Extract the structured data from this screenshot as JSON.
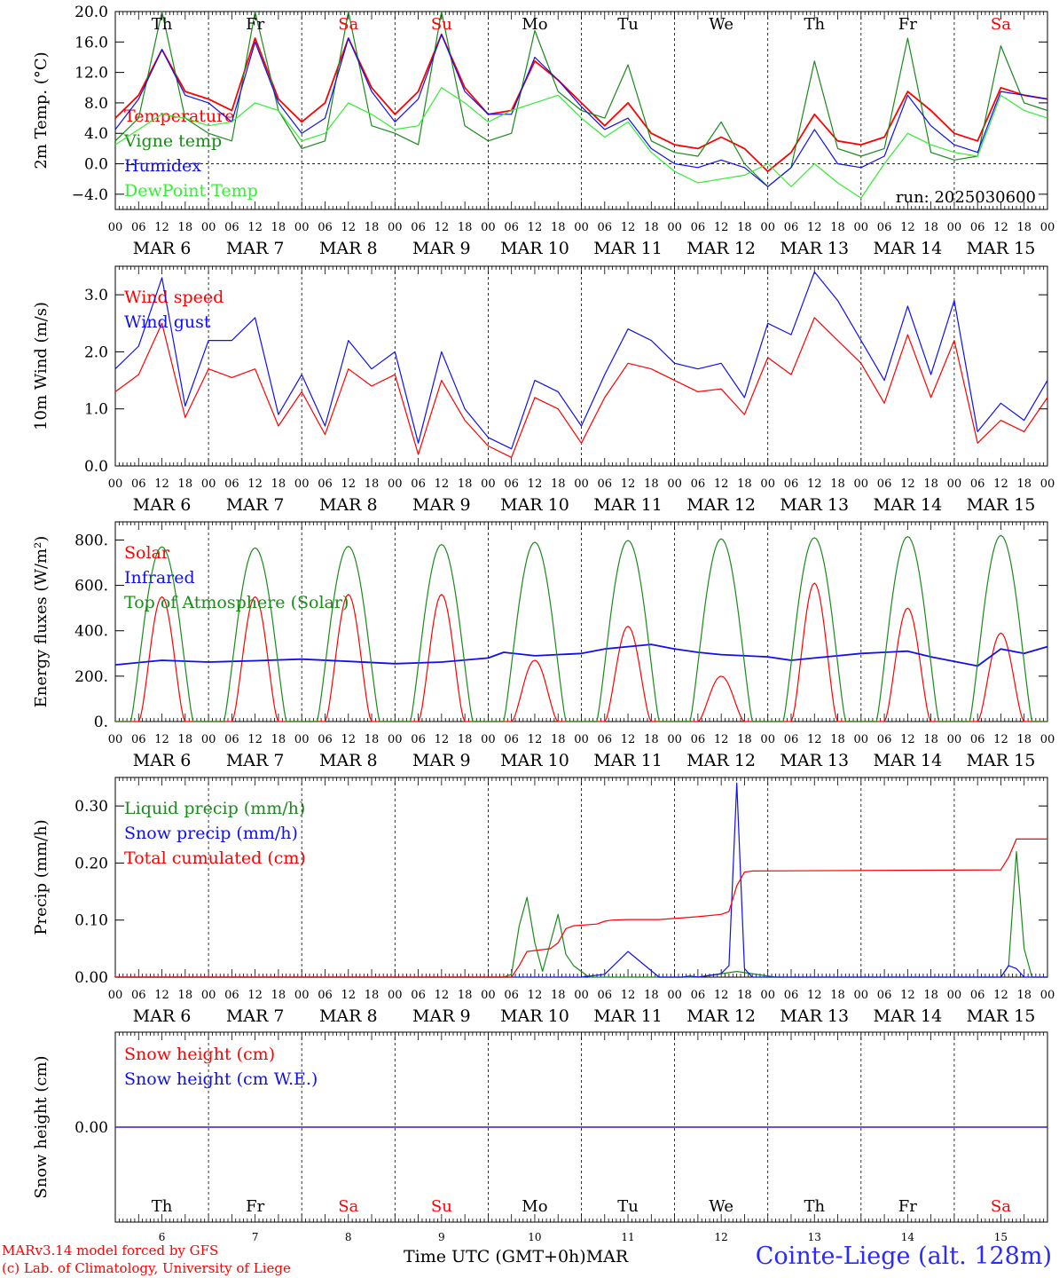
{
  "meta": {
    "run_label": "run: 2025030600",
    "station": "Cointe-Liege (alt. 128m)",
    "x_caption": "Time UTC (GMT+0h)",
    "x_caption_month": "MAR",
    "credit_line1": "MARv3.14 model forced by GFS",
    "credit_line2": "(c) Lab. of Climatology, University of Liege"
  },
  "days": {
    "weekday_labels": [
      "Th",
      "Fr",
      "Sa",
      "Su",
      "Mo",
      "Tu",
      "We",
      "Th",
      "Fr",
      "Sa"
    ],
    "weekend_flags": [
      false,
      false,
      true,
      true,
      false,
      false,
      false,
      false,
      false,
      true
    ],
    "date_labels": [
      "MAR  6",
      "MAR  7",
      "MAR  8",
      "MAR  9",
      "MAR 10",
      "MAR 11",
      "MAR 12",
      "MAR 13",
      "MAR 14",
      "MAR 15"
    ],
    "day_numbers": [
      "6",
      "7",
      "8",
      "9",
      "10",
      "11",
      "12",
      "13",
      "14",
      "15"
    ],
    "hour_ticks": [
      "00",
      "06",
      "12",
      "18"
    ],
    "last_hour_tick": "00"
  },
  "colors": {
    "red": "#ff0000",
    "green": "#1a8a1a",
    "blue": "#1010ee",
    "light_green": "#33ee33",
    "weekday": "#000000",
    "weekend": "#ff0000"
  },
  "chart_data": [
    {
      "type": "line",
      "ylabel": "2m Temp. (°C)",
      "ylim": [
        -6,
        20
      ],
      "yticks": [
        -4,
        0,
        4,
        8,
        12,
        16,
        20
      ],
      "ytick_labels": [
        "−4.0",
        "0.0",
        "4.0",
        "8.0",
        "12.0",
        "16.0",
        "20.0"
      ],
      "zero_line": true,
      "show_weekdays": true,
      "x_hours": [
        0,
        6,
        12,
        18,
        24,
        30,
        36,
        42,
        48,
        54,
        60,
        66,
        72,
        78,
        84,
        90,
        96,
        102,
        108,
        114,
        120,
        126,
        132,
        138,
        144,
        150,
        156,
        162,
        168,
        174,
        180,
        186,
        192,
        198,
        204,
        210,
        216,
        222,
        228,
        234,
        240
      ],
      "series": [
        {
          "name": "Temperature",
          "color": "red",
          "values": [
            6,
            9,
            15,
            9.5,
            8.5,
            7,
            16.5,
            8.5,
            5.5,
            8,
            16.5,
            10,
            6.5,
            9.5,
            17,
            10,
            6.5,
            7,
            13.5,
            11,
            8,
            5,
            8,
            4,
            2.5,
            2,
            3.5,
            2,
            -1,
            1.5,
            6.5,
            3,
            2.5,
            3.5,
            9.5,
            7,
            4,
            3,
            10,
            9,
            8.5
          ]
        },
        {
          "name": "Vigne temp",
          "color": "green",
          "values": [
            3,
            6,
            20,
            6,
            4,
            3,
            20,
            7,
            2,
            3,
            20,
            5,
            4,
            2.5,
            20,
            5,
            3,
            4,
            17.5,
            9.5,
            7,
            6,
            13,
            3,
            1.5,
            1,
            5.5,
            0,
            -3,
            -0.5,
            13.5,
            2,
            1,
            2,
            16.5,
            1.5,
            0.5,
            1,
            15.5,
            8,
            7
          ]
        },
        {
          "name": "Humidex",
          "color": "blue",
          "values": [
            4.5,
            8.5,
            15,
            9,
            8,
            5.5,
            16,
            8,
            4,
            6,
            16.5,
            9.5,
            5.5,
            8.5,
            17,
            9.5,
            6.5,
            6.5,
            14,
            11,
            7.5,
            4.5,
            6,
            2,
            0,
            -0.5,
            0.5,
            -0.5,
            -3,
            -0.5,
            4.5,
            0,
            -0.5,
            1,
            9,
            5,
            2.5,
            1.5,
            9.5,
            9,
            8.5
          ]
        },
        {
          "name": "DewPoint Temp",
          "color": "light_green",
          "values": [
            2.5,
            4.5,
            6.5,
            6,
            5,
            5.5,
            8,
            7,
            3,
            4,
            8,
            6.5,
            4.5,
            5,
            10,
            8,
            5.5,
            7,
            8,
            9,
            6,
            3.5,
            5.5,
            1.5,
            -1,
            -2.5,
            -2,
            -1.5,
            0,
            -3,
            0,
            -2.5,
            -4.5,
            0,
            4,
            2.5,
            1.5,
            1,
            9,
            7,
            6
          ]
        }
      ]
    },
    {
      "type": "line",
      "ylabel": "10m Wind (m/s)",
      "ylim": [
        0,
        3.5
      ],
      "yticks": [
        0,
        1,
        2,
        3
      ],
      "ytick_labels": [
        "0.0",
        "1.0",
        "2.0",
        "3.0"
      ],
      "show_weekdays": false,
      "x_hours": [
        0,
        6,
        12,
        18,
        24,
        30,
        36,
        42,
        48,
        54,
        60,
        66,
        72,
        78,
        84,
        90,
        96,
        102,
        108,
        114,
        120,
        126,
        132,
        138,
        144,
        150,
        156,
        162,
        168,
        174,
        180,
        186,
        192,
        198,
        204,
        210,
        216,
        222,
        228,
        234,
        240
      ],
      "series": [
        {
          "name": "Wind speed",
          "color": "red",
          "values": [
            1.3,
            1.6,
            2.5,
            0.85,
            1.7,
            1.55,
            1.7,
            0.7,
            1.3,
            0.55,
            1.7,
            1.4,
            1.6,
            0.2,
            1.5,
            0.8,
            0.35,
            0.15,
            1.2,
            1.0,
            0.4,
            1.2,
            1.8,
            1.7,
            1.5,
            1.3,
            1.35,
            0.9,
            1.9,
            1.6,
            2.6,
            2.2,
            1.8,
            1.1,
            2.3,
            1.2,
            2.2,
            0.4,
            0.8,
            0.6,
            1.2
          ]
        },
        {
          "name": "Wind gust",
          "color": "blue",
          "values": [
            1.7,
            2.1,
            3.3,
            1.05,
            2.2,
            2.2,
            2.6,
            0.9,
            1.6,
            0.7,
            2.2,
            1.7,
            2.0,
            0.4,
            2.0,
            1.0,
            0.5,
            0.3,
            1.5,
            1.3,
            0.7,
            1.6,
            2.4,
            2.2,
            1.8,
            1.7,
            1.8,
            1.2,
            2.5,
            2.3,
            3.4,
            2.9,
            2.2,
            1.5,
            2.8,
            1.6,
            2.9,
            0.6,
            1.1,
            0.8,
            1.5
          ]
        }
      ]
    },
    {
      "type": "line",
      "ylabel": "Energy fluxes (W/m²)",
      "ylim": [
        0,
        880
      ],
      "yticks": [
        0,
        200,
        400,
        600,
        800
      ],
      "ytick_labels": [
        "0.",
        "200.",
        "400.",
        "600.",
        "800."
      ],
      "show_weekdays": false,
      "peaks": {
        "top_of_atmosphere": [
          770,
          765,
          772,
          780,
          790,
          798,
          805,
          810,
          815,
          820
        ],
        "solar": [
          550,
          550,
          560,
          560,
          270,
          420,
          200,
          610,
          500,
          390
        ]
      },
      "series": [
        {
          "name": "Solar",
          "color": "red"
        },
        {
          "name": "Infrared",
          "color": "blue",
          "x_hours": [
            0,
            12,
            24,
            36,
            48,
            60,
            72,
            84,
            96,
            100,
            108,
            120,
            126,
            132,
            138,
            144,
            150,
            156,
            162,
            168,
            174,
            180,
            186,
            192,
            198,
            204,
            210,
            216,
            222,
            228,
            234,
            240
          ],
          "values": [
            250,
            270,
            262,
            268,
            275,
            265,
            255,
            262,
            280,
            305,
            290,
            300,
            320,
            330,
            340,
            320,
            305,
            295,
            290,
            285,
            270,
            280,
            290,
            300,
            305,
            310,
            285,
            265,
            245,
            320,
            300,
            330
          ]
        },
        {
          "name": "Top of Atmosphere (Solar)",
          "color": "green"
        }
      ]
    },
    {
      "type": "line",
      "ylabel": "Precip (mm/h)",
      "ylim": [
        0,
        0.35
      ],
      "yticks": [
        0,
        0.1,
        0.2,
        0.3
      ],
      "ytick_labels": [
        "0.00",
        "0.10",
        "0.20",
        "0.30"
      ],
      "show_weekdays": false,
      "series": [
        {
          "name": "Liquid precip (mm/h)",
          "color": "green",
          "x_hours": [
            0,
            100,
            102,
            104,
            106,
            108,
            110,
            112,
            114,
            116,
            118,
            120,
            122,
            124,
            126,
            128,
            130,
            132,
            140,
            150,
            160,
            170,
            174,
            176,
            178,
            228,
            230,
            232,
            234,
            236,
            240
          ],
          "values": [
            0,
            0,
            0.005,
            0.09,
            0.14,
            0.06,
            0.01,
            0.06,
            0.11,
            0.04,
            0.02,
            0.01,
            0,
            0,
            0,
            0,
            0,
            0,
            0,
            0,
            0.01,
            0,
            0,
            0,
            0,
            0,
            0.02,
            0.22,
            0.05,
            0,
            0
          ]
        },
        {
          "name": "Snow precip (mm/h)",
          "color": "blue",
          "x_hours": [
            0,
            120,
            126,
            132,
            140,
            146,
            148,
            150,
            156,
            158,
            160,
            162,
            164,
            166,
            168,
            170,
            228,
            230,
            232,
            234,
            240
          ],
          "values": [
            0,
            0,
            0.005,
            0.045,
            0,
            0,
            0.002,
            0,
            0.006,
            0.02,
            0.34,
            0.015,
            0,
            0,
            0,
            0,
            0,
            0.02,
            0.015,
            0,
            0
          ]
        },
        {
          "name": "Total cumulated (cm)",
          "color": "red",
          "x_hours": [
            0,
            102,
            104,
            106,
            112,
            114,
            116,
            118,
            124,
            126,
            128,
            132,
            140,
            150,
            156,
            158,
            160,
            162,
            164,
            228,
            230,
            232,
            240
          ],
          "values": [
            0,
            0,
            0.02,
            0.045,
            0.05,
            0.06,
            0.085,
            0.09,
            0.093,
            0.098,
            0.1,
            0.101,
            0.101,
            0.106,
            0.11,
            0.115,
            0.16,
            0.184,
            0.186,
            0.188,
            0.21,
            0.242,
            0.242
          ]
        }
      ]
    },
    {
      "type": "line",
      "ylabel": "Snow height (cm)",
      "ylim": [
        -0.5,
        0.5
      ],
      "yticks": [
        0
      ],
      "ytick_labels": [
        "0.00"
      ],
      "show_weekdays": false,
      "show_bottom_days": true,
      "x_hours": [
        0,
        240
      ],
      "series": [
        {
          "name": "Snow height (cm)",
          "color": "red",
          "values": [
            0,
            0
          ]
        },
        {
          "name": "Snow height (cm W.E.)",
          "color": "blue",
          "values": [
            0,
            0
          ]
        }
      ]
    }
  ]
}
